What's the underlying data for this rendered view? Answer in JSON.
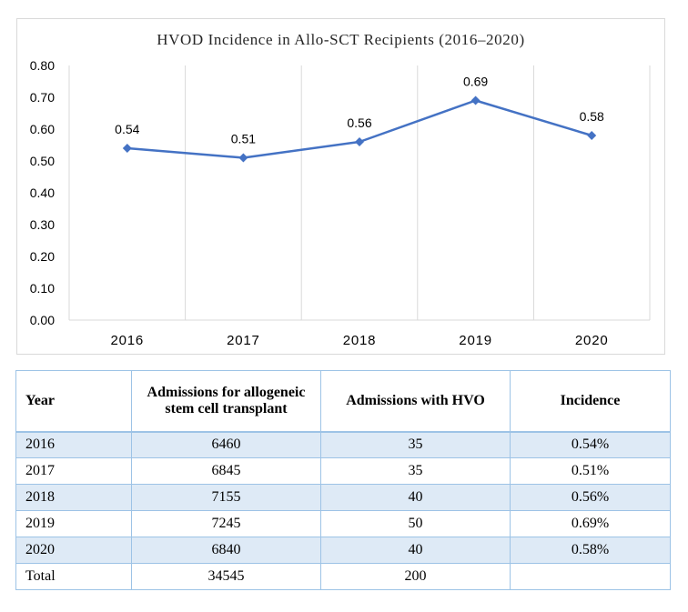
{
  "chart_data": {
    "type": "line",
    "title": "HVOD Incidence in Allo-SCT Recipients (2016–2020)",
    "categories": [
      "2016",
      "2017",
      "2018",
      "2019",
      "2020"
    ],
    "values": [
      0.54,
      0.51,
      0.56,
      0.69,
      0.58
    ],
    "data_labels": [
      "0.54",
      "0.51",
      "0.56",
      "0.69",
      "0.58"
    ],
    "ylim": [
      0,
      0.8
    ],
    "y_ticks": [
      "0.00",
      "0.10",
      "0.20",
      "0.30",
      "0.40",
      "0.50",
      "0.60",
      "0.70",
      "0.80"
    ],
    "grid": "vertical",
    "marker": "diamond",
    "series_color": "#4472c4",
    "xlabel": "",
    "ylabel": ""
  },
  "table": {
    "headers": [
      "Year",
      "Admissions for allogeneic stem cell transplant",
      "Admissions with HVO",
      "Incidence"
    ],
    "rows": [
      [
        "2016",
        "6460",
        "35",
        "0.54%"
      ],
      [
        "2017",
        "6845",
        "35",
        "0.51%"
      ],
      [
        "2018",
        "7155",
        "40",
        "0.56%"
      ],
      [
        "2019",
        "7245",
        "50",
        "0.69%"
      ],
      [
        "2020",
        "6840",
        "40",
        "0.58%"
      ],
      [
        "Total",
        "34545",
        "200",
        ""
      ]
    ],
    "band_color": "#deeaf6",
    "border_color": "#9dc3e6"
  }
}
